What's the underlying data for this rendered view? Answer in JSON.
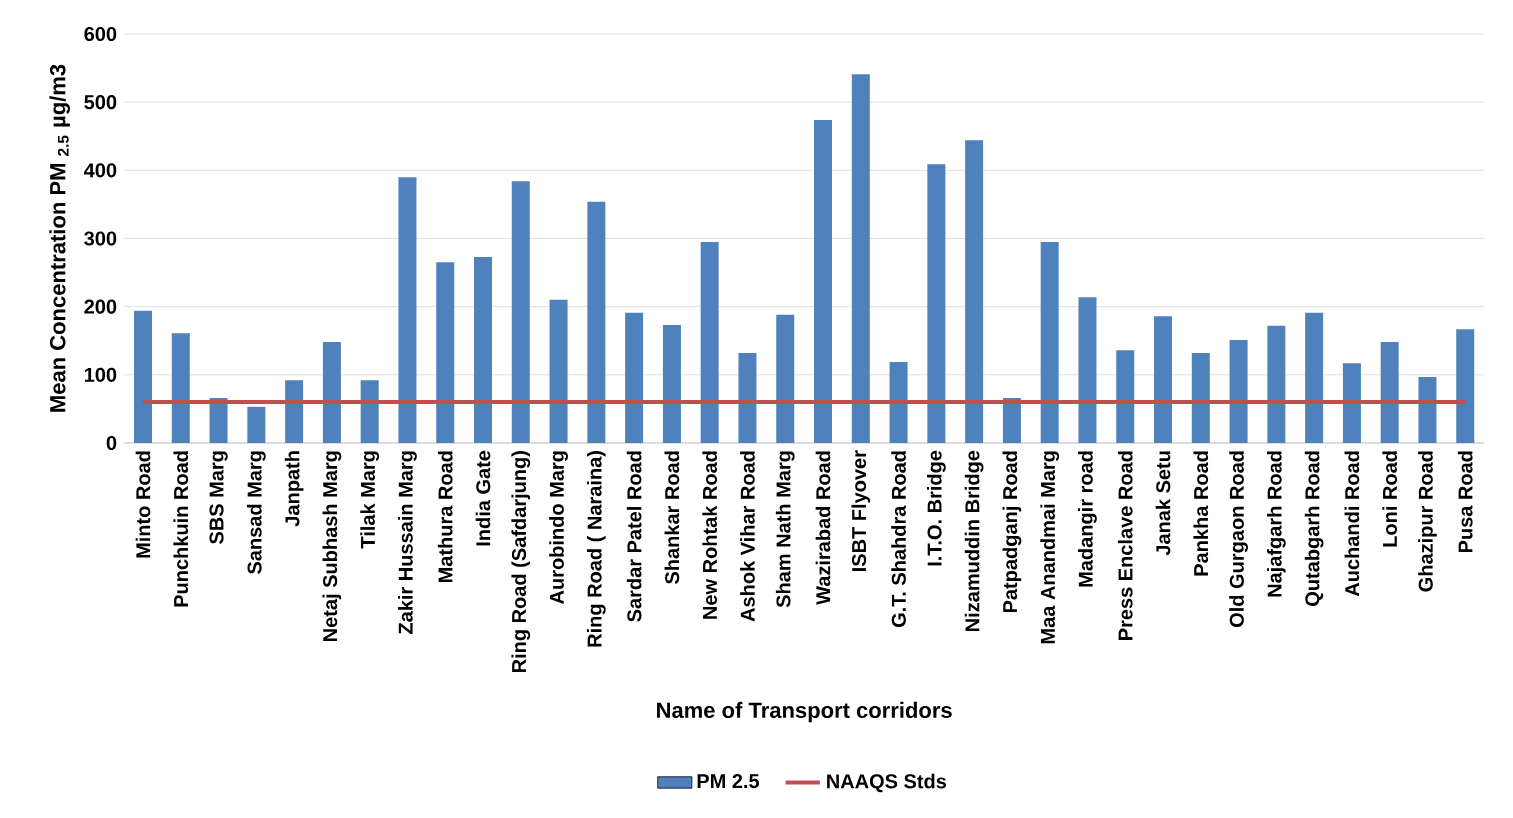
{
  "chart_data": {
    "type": "bar",
    "xlabel": "Name of Transport corridors",
    "ylabel": "Mean Concentration PM $_{2.5}$ µg/m3",
    "categories": [
      "Minto Road",
      "Punchkuin Road",
      "SBS Marg",
      "Sansad Marg",
      "Janpath",
      "Netaj Subhash Marg",
      "Tilak Marg",
      "Zakir Hussain Marg",
      "Mathura Road",
      "India Gate",
      "Ring Road (Safdarjung)",
      "Aurobindo Marg",
      "Ring Road ( Naraina)",
      "Sardar Patel Road",
      "Shankar Road",
      "New Rohtak Road",
      "Ashok Vihar Road",
      "Sham Nath Marg",
      "Wazirabad Road",
      "ISBT Flyover",
      "G.T. Shahdra Road",
      "I.T.O. Bridge",
      "Nizamuddin Bridge",
      "Patpadganj Road",
      "Maa Anandmai Marg",
      "Madangir road",
      "Press Enclave Road",
      "Janak Setu",
      "Pankha Road",
      "Old Gurgaon Road",
      "Najafgarh Road",
      "Qutabgarh Road",
      "Auchandi Road",
      "Loni Road",
      "Ghazipur Road",
      "Pusa Road"
    ],
    "series": [
      {
        "name": "PM 2.5",
        "color": "#4f81bd",
        "values": [
          194,
          161,
          66,
          53,
          92,
          148,
          92,
          390,
          265,
          273,
          384,
          210,
          354,
          191,
          173,
          295,
          132,
          188,
          474,
          541,
          119,
          409,
          444,
          66,
          295,
          214,
          136,
          186,
          132,
          151,
          172,
          191,
          117,
          148,
          97,
          167
        ]
      },
      {
        "name": "NAAQS Stds",
        "type": "line",
        "color": "#c0504d",
        "values": [
          60,
          60,
          60,
          60,
          60,
          60,
          60,
          60,
          60,
          60,
          60,
          60,
          60,
          60,
          60,
          60,
          60,
          60,
          60,
          60,
          60,
          60,
          60,
          60,
          60,
          60,
          60,
          60,
          60,
          60,
          60,
          60,
          60,
          60,
          60,
          60
        ]
      }
    ],
    "ylim": [
      0,
      600
    ],
    "yticks": [
      0,
      100,
      200,
      300,
      400,
      500,
      600
    ],
    "grid": "y",
    "legend": "bottom"
  }
}
